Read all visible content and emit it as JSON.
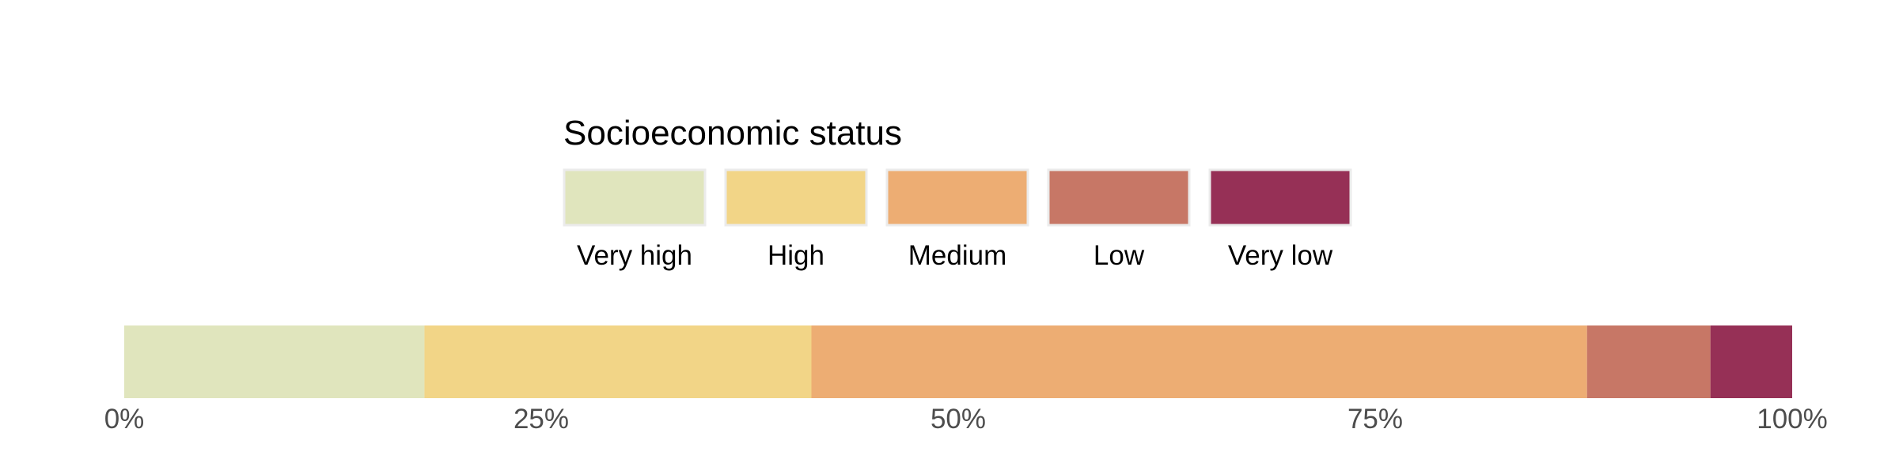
{
  "chart_data": {
    "type": "bar",
    "orientation": "horizontal",
    "stacked": true,
    "title": "",
    "xlabel": "",
    "ylabel": "",
    "xlim": [
      0,
      100
    ],
    "x_ticks": [
      "0%",
      "25%",
      "50%",
      "75%",
      "100%"
    ],
    "grid": false,
    "legend": {
      "title": "Socioeconomic status",
      "placement": "top-center",
      "entries": [
        "Very high",
        "High",
        "Medium",
        "Low",
        "Very low"
      ]
    },
    "series": [
      {
        "name": "Very high",
        "color": "#E0E5BD",
        "value": 18.0
      },
      {
        "name": "High",
        "color": "#F2D587",
        "value": 23.2
      },
      {
        "name": "Medium",
        "color": "#EDAD73",
        "value": 46.5
      },
      {
        "name": "Low",
        "color": "#C77766",
        "value": 7.4
      },
      {
        "name": "Very low",
        "color": "#963056",
        "value": 4.9
      }
    ]
  }
}
